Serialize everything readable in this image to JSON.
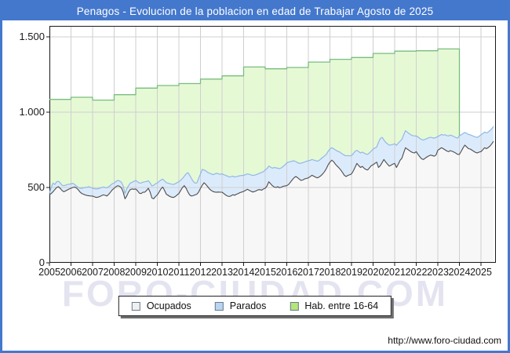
{
  "window": {
    "title": "Penagos - Evolucion de la poblacion en edad de Trabajar Agosto de 2025"
  },
  "footer": {
    "url": "http://www.foro-ciudad.com"
  },
  "watermark": "FORO-CIUDAD.COM",
  "colors": {
    "frame_blue": "#4478cd",
    "grid": "#cfcfcf",
    "axis": "#1a1a1a",
    "plot_background": "#ffffff"
  },
  "chart_data": {
    "type": "area",
    "title": "Penagos - Evolucion de la poblacion en edad de Trabajar Agosto de 2025",
    "xlabel": "",
    "ylabel": "",
    "ylim": [
      0,
      1573
    ],
    "grid": true,
    "legend_position": "bottom",
    "x_unit": "month",
    "x_start": "2005-01",
    "x_end": "2025-08",
    "x_tick_labels": [
      "2005",
      "2006",
      "2007",
      "2008",
      "2009",
      "2010",
      "2011",
      "2012",
      "2013",
      "2014",
      "2015",
      "2016",
      "2017",
      "2018",
      "2019",
      "2020",
      "2021",
      "2022",
      "2023",
      "2024",
      "2025"
    ],
    "y_ticks": [
      0,
      500,
      1000,
      1500
    ],
    "y_tick_labels": [
      "0",
      "500",
      "1.000",
      "1.500"
    ],
    "series": [
      {
        "name": "Ocupados",
        "kind": "monthly",
        "fill": "#f7f7f7",
        "line": "#4d4d4d",
        "swatch": "#f0f0f0",
        "values": [
          452,
          460,
          472,
          486,
          500,
          505,
          494,
          480,
          472,
          477,
          484,
          490,
          495,
          500,
          503,
          497,
          485,
          470,
          460,
          455,
          450,
          447,
          445,
          444,
          443,
          438,
          434,
          436,
          440,
          446,
          451,
          448,
          444,
          455,
          470,
          485,
          495,
          505,
          512,
          508,
          498,
          470,
          425,
          443,
          470,
          486,
          490,
          488,
          490,
          478,
          462,
          460,
          468,
          469,
          480,
          495,
          470,
          430,
          425,
          440,
          451,
          470,
          490,
          503,
          480,
          455,
          448,
          440,
          436,
          434,
          440,
          450,
          460,
          480,
          500,
          512,
          495,
          470,
          450,
          443,
          446,
          451,
          455,
          470,
          495,
          515,
          531,
          520,
          505,
          490,
          480,
          473,
          470,
          468,
          470,
          469,
          469,
          460,
          450,
          443,
          440,
          445,
          452,
          448,
          455,
          460,
          466,
          470,
          474,
          480,
          488,
          482,
          476,
          470,
          473,
          478,
          484,
          486,
          482,
          490,
          495,
          510,
          538,
          525,
          512,
          503,
          500,
          505,
          498,
          502,
          508,
          510,
          512,
          520,
          535,
          550,
          564,
          573,
          565,
          555,
          547,
          550,
          558,
          560,
          564,
          572,
          581,
          575,
          568,
          564,
          570,
          578,
          590,
          605,
          625,
          650,
          668,
          681,
          672,
          655,
          642,
          630,
          616,
          600,
          581,
          573,
          580,
          585,
          590,
          610,
          635,
          660,
          645,
          633,
          640,
          628,
          620,
          616,
          630,
          645,
          651,
          660,
          668,
          633,
          645,
          665,
          686,
          670,
          655,
          642,
          648,
          655,
          660,
          633,
          655,
          680,
          694,
          730,
          764,
          755,
          747,
          738,
          732,
          729,
          738,
          720,
          703,
          690,
          686,
          695,
          703,
          710,
          715,
          712,
          708,
          715,
          747,
          755,
          764,
          758,
          750,
          742,
          738,
          745,
          740,
          735,
          728,
          720,
          720,
          740,
          762,
          781,
          770,
          758,
          755,
          748,
          740,
          733,
          729,
          735,
          738,
          750,
          764,
          758,
          765,
          775,
          790,
          807
        ]
      },
      {
        "name": "Parados",
        "kind": "monthly_band_stacked_on_ocupados",
        "fill": "#dcebfb",
        "line": "#8fb9e6",
        "swatch": "#b8d6f2",
        "values": [
          8,
          40,
          57,
          34,
          38,
          36,
          36,
          35,
          40,
          38,
          36,
          32,
          29,
          28,
          17,
          13,
          15,
          25,
          35,
          43,
          50,
          55,
          60,
          56,
          52,
          54,
          56,
          56,
          55,
          54,
          52,
          52,
          54,
          50,
          45,
          40,
          34,
          35,
          35,
          35,
          37,
          40,
          35,
          47,
          42,
          43,
          45,
          52,
          57,
          60,
          67,
          70,
          67,
          69,
          60,
          50,
          60,
          80,
          90,
          85,
          78,
          70,
          60,
          52,
          65,
          77,
          81,
          85,
          86,
          86,
          85,
          82,
          78,
          68,
          60,
          63,
          95,
          129,
          130,
          117,
          94,
          78,
          75,
          90,
          95,
          105,
          85,
          90,
          95,
          105,
          110,
          112,
          120,
          127,
          120,
          119,
          121,
          125,
          130,
          132,
          130,
          127,
          123,
          122,
          117,
          115,
          112,
          110,
          106,
          105,
          102,
          106,
          108,
          110,
          109,
          107,
          106,
          109,
          118,
          115,
          121,
          115,
          104,
          110,
          116,
          130,
          130,
          123,
          127,
          128,
          132,
          140,
          151,
          148,
          137,
          125,
          113,
          99,
          100,
          105,
          115,
          115,
          112,
          114,
          113,
          108,
          105,
          107,
          110,
          111,
          110,
          112,
          110,
          105,
          95,
          90,
          87,
          83,
          86,
          95,
          100,
          108,
          114,
          122,
          134,
          137,
          132,
          125,
          122,
          115,
          105,
          87,
          93,
          96,
          95,
          100,
          102,
          104,
          100,
          97,
          104,
          102,
          100,
          167,
          180,
          168,
          129,
          130,
          135,
          139,
          135,
          131,
          130,
          147,
          140,
          127,
          126,
          120,
          113,
          113,
          111,
          112,
          113,
          113,
          104,
          115,
          122,
          128,
          129,
          125,
          122,
          120,
          118,
          118,
          120,
          117,
          92,
          90,
          88,
          90,
          100,
          103,
          104,
          103,
          103,
          103,
          104,
          108,
          122,
          110,
          96,
          84,
          90,
          94,
          95,
          97,
          100,
          102,
          104,
          105,
          112,
          108,
          104,
          104,
          103,
          103,
          100,
          98
        ]
      },
      {
        "name": "Hab. entre 16-64",
        "kind": "annual_steps",
        "fill": "#e6f9d5",
        "line": "#79bd80",
        "swatch": "#b3e57c",
        "years": [
          2005,
          2006,
          2007,
          2008,
          2009,
          2010,
          2011,
          2012,
          2013,
          2014,
          2015,
          2016,
          2017,
          2018,
          2019,
          2020,
          2021,
          2022,
          2023
        ],
        "values": [
          1085,
          1099,
          1080,
          1116,
          1160,
          1177,
          1190,
          1220,
          1241,
          1300,
          1288,
          1297,
          1333,
          1351,
          1363,
          1390,
          1405,
          1408,
          1420
        ],
        "series_end": "2024-01"
      }
    ]
  }
}
